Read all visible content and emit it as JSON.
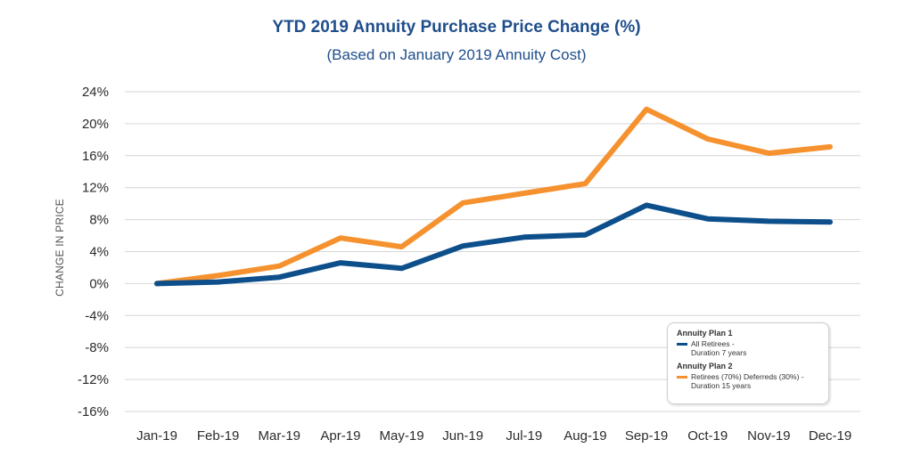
{
  "chart_data": {
    "type": "line",
    "title": "YTD 2019 Annuity Purchase Price Change (%)",
    "subtitle": "(Based on January 2019 Annuity Cost)",
    "xlabel": "",
    "ylabel": "CHANGE IN PRICE",
    "categories": [
      "Jan-19",
      "Feb-19",
      "Mar-19",
      "Apr-19",
      "May-19",
      "Jun-19",
      "Jul-19",
      "Aug-19",
      "Sep-19",
      "Oct-19",
      "Nov-19",
      "Dec-19"
    ],
    "ylim": [
      -16,
      24
    ],
    "yticks": [
      24,
      20,
      16,
      12,
      8,
      4,
      0,
      -4,
      -8,
      -12,
      -16
    ],
    "ytick_labels": [
      "24%",
      "20%",
      "16%",
      "12%",
      "8%",
      "4%",
      "0%",
      "-4%",
      "-8%",
      "-12%",
      "-16%"
    ],
    "grid": true,
    "legend_position": "bottom-right",
    "series": [
      {
        "name": "All Retirees - Duration 7 years",
        "group": "Annuity Plan 1",
        "label_lines": [
          "All Retirees -",
          "Duration 7 years"
        ],
        "color": "#0d4f8b",
        "values": [
          0,
          0.2,
          0.8,
          2.6,
          1.9,
          4.7,
          5.8,
          6.1,
          9.8,
          8.1,
          7.8,
          7.7
        ]
      },
      {
        "name": "Retirees (70%) Deferreds (30%) - Duration 15 years",
        "group": "Annuity Plan 2",
        "label_lines": [
          "Retirees (70%) Deferreds (30%) -",
          "Duration 15 years"
        ],
        "color": "#f5922f",
        "values": [
          0,
          1.0,
          2.2,
          5.7,
          4.6,
          10.1,
          11.3,
          12.5,
          21.8,
          18.1,
          16.3,
          17.1
        ]
      }
    ]
  }
}
